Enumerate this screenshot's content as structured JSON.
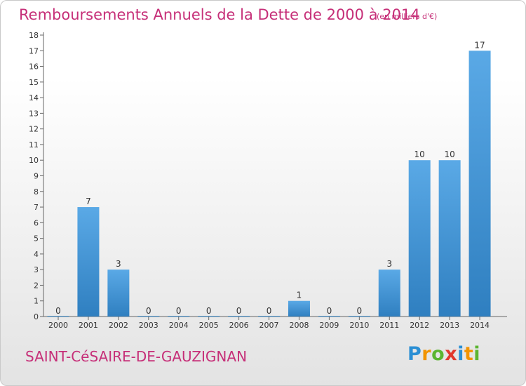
{
  "title": "Remboursements Annuels de la Dette de 2000 à 2014",
  "unit_note": "(en milliers d'€)",
  "commune": "SAINT-CéSAIRE-DE-GAUZIGNAN",
  "logo": {
    "text": "Proxiti",
    "letters": [
      "P",
      "r",
      "o",
      "x",
      "i",
      "t",
      "i"
    ],
    "colors": [
      "#2b8fd4",
      "#f29400",
      "#5cb531",
      "#e2382d",
      "#2b8fd4",
      "#f29400",
      "#5cb531"
    ]
  },
  "colors": {
    "accent": "#c62f78",
    "bar_top": "#5aa9e6",
    "bar_bottom": "#2f7fc0"
  },
  "chart_data": {
    "type": "bar",
    "title": "Remboursements Annuels de la Dette de 2000 à 2014",
    "subtitle": "(en milliers d'€)",
    "xlabel": "",
    "ylabel": "",
    "categories": [
      "2000",
      "2001",
      "2002",
      "2003",
      "2004",
      "2005",
      "2006",
      "2007",
      "2008",
      "2009",
      "2010",
      "2011",
      "2012",
      "2013",
      "2014"
    ],
    "values": [
      0,
      7,
      3,
      0,
      0,
      0,
      0,
      0,
      1,
      0,
      0,
      3,
      10,
      10,
      17
    ],
    "ylim": [
      0,
      18
    ],
    "yticks": [
      "0",
      "1",
      "2",
      "3",
      "4",
      "5",
      "6",
      "7",
      "8",
      "9",
      "10",
      "11",
      "12",
      "13",
      "14",
      "15",
      "16",
      "17",
      "18"
    ],
    "grid": false,
    "legend": "none"
  }
}
